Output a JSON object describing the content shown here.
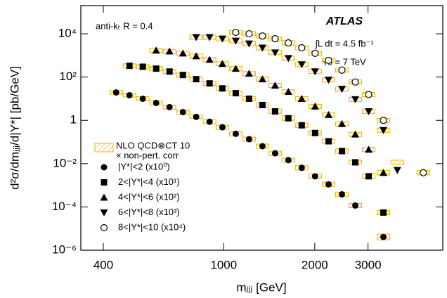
{
  "chart_data": {
    "type": "scatter",
    "xlog": true,
    "ylog": true,
    "x_label": "mⱼⱼⱼ [GeV]",
    "y_label": "d²σ/dmⱼⱼⱼ/d|Y*| [pb/GeV]",
    "annotations": [
      "anti-kₜ R = 0.4",
      "ATLAS",
      "∫L dt = 4.5 fb⁻¹",
      "√s = 7 TeV"
    ],
    "band_label": [
      "NLO QCD⊗CT 10",
      "× non-pert. corr"
    ],
    "band_color": "#f0b400",
    "xlim": [
      337,
      5300
    ],
    "ylim": [
      1e-06,
      200000
    ],
    "xticks": [
      400,
      1000,
      2000,
      3000
    ],
    "yticks": [
      {
        "value": 10000,
        "label": "10⁴"
      },
      {
        "value": 100,
        "label": "10²"
      },
      1,
      {
        "value": 0.01,
        "label": "10⁻²"
      },
      {
        "value": 0.0001,
        "label": "10⁻⁴"
      },
      {
        "value": 1e-06,
        "label": "10⁻⁶"
      }
    ],
    "series": [
      {
        "name": "|Y*|<2 (x10⁰)",
        "marker": "circle",
        "color": "#000000",
        "x": [
          441,
          488,
          540,
          598,
          662,
          733,
          811,
          898,
          990,
          1096,
          1213,
          1343,
          1479,
          1636,
          1811,
          2005,
          2222,
          2460,
          2723,
          3373
        ],
        "values": [
          19.5,
          14.5,
          10,
          6.4,
          4.1,
          2.4,
          1.45,
          0.86,
          0.48,
          0.24,
          0.135,
          0.064,
          0.03,
          0.0145,
          0.0064,
          0.0026,
          0.0011,
          0.00038,
          0.000116,
          4.1e-06
        ],
        "theory": [
          [
            16,
            24
          ],
          [
            12,
            18
          ],
          [
            8,
            12.5
          ],
          [
            5.1,
            8
          ],
          [
            3.3,
            5.1
          ],
          [
            1.9,
            3
          ],
          [
            1.2,
            1.8
          ],
          [
            0.69,
            1.08
          ],
          [
            0.38,
            0.6
          ],
          [
            0.19,
            0.3
          ],
          [
            0.108,
            0.17
          ],
          [
            0.051,
            0.08
          ],
          [
            0.024,
            0.038
          ],
          [
            0.0116,
            0.018
          ],
          [
            0.0051,
            0.008
          ],
          [
            0.0021,
            0.0033
          ],
          [
            0.00088,
            0.0014
          ],
          [
            0.0003,
            0.00048
          ],
          [
            9.3e-05,
            0.000145
          ],
          [
            3e-06,
            5.5e-06
          ]
        ]
      },
      {
        "name": "2<|Y*|<4 (x10¹)",
        "marker": "square",
        "color": "#000000",
        "x": [
          488,
          540,
          598,
          662,
          733,
          811,
          898,
          990,
          1096,
          1213,
          1343,
          1479,
          1636,
          1811,
          2005,
          2222,
          2460,
          2723,
          3015,
          3373
        ],
        "values": [
          330,
          300,
          245,
          180,
          125,
          80,
          51,
          30,
          18,
          10,
          5.1,
          2.6,
          1.25,
          0.59,
          0.26,
          0.108,
          0.038,
          0.0115,
          0.0026,
          5.5e-05
        ],
        "theory": [
          [
            265,
            410
          ],
          [
            240,
            375
          ],
          [
            195,
            305
          ],
          [
            145,
            225
          ],
          [
            100,
            155
          ],
          [
            64,
            100
          ],
          [
            41,
            64
          ],
          [
            24,
            38
          ],
          [
            14,
            22
          ],
          [
            8,
            12.5
          ],
          [
            4.1,
            6.4
          ],
          [
            2.1,
            3.3
          ],
          [
            1,
            1.6
          ],
          [
            0.47,
            0.74
          ],
          [
            0.21,
            0.33
          ],
          [
            0.086,
            0.135
          ],
          [
            0.03,
            0.048
          ],
          [
            0.0092,
            0.0144
          ],
          [
            0.0021,
            0.0033
          ],
          [
            4.4e-05,
            6.9e-05
          ]
        ]
      },
      {
        "name": "4<|Y*|<6  (x10²)",
        "marker": "triangle-up",
        "color": "#000000",
        "x": [
          598,
          662,
          733,
          811,
          898,
          990,
          1096,
          1213,
          1343,
          1479,
          1636,
          1811,
          2005,
          2222,
          2460,
          2723,
          3015,
          3373
        ],
        "values": [
          1700,
          1550,
          1250,
          930,
          640,
          410,
          245,
          145,
          80,
          41,
          21,
          10,
          4.4,
          1.8,
          0.69,
          0.226,
          0.045,
          0.0038
        ],
        "theory": [
          [
            1360,
            2100
          ],
          [
            1240,
            1900
          ],
          [
            1000,
            1550
          ],
          [
            740,
            1160
          ],
          [
            510,
            800
          ],
          [
            330,
            510
          ],
          [
            196,
            305
          ],
          [
            116,
            180
          ],
          [
            64,
            100
          ],
          [
            33,
            51
          ],
          [
            17,
            26
          ],
          [
            8,
            12.5
          ],
          [
            3.5,
            5.5
          ],
          [
            1.45,
            2.25
          ],
          [
            0.55,
            0.86
          ],
          [
            0.18,
            0.28
          ],
          [
            0.036,
            0.056
          ],
          [
            0.003,
            0.0048
          ]
        ]
      },
      {
        "name": "6<|Y*|<8  (x10³)",
        "marker": "triangle-down",
        "color": "#000000",
        "x": [
          811,
          898,
          990,
          1096,
          1213,
          1343,
          1479,
          1636,
          1811,
          2005,
          2222,
          2460,
          2723,
          3015,
          3373,
          3750
        ],
        "values": [
          6900,
          6900,
          5900,
          4700,
          3500,
          2250,
          1350,
          740,
          380,
          180,
          74,
          28,
          9.3,
          2.6,
          0.35,
          0.005
        ],
        "theory": [
          [
            5500,
            8600
          ],
          [
            5500,
            8600
          ],
          [
            4700,
            7400
          ],
          [
            3800,
            5900
          ],
          [
            2800,
            4400
          ],
          [
            1800,
            2800
          ],
          [
            1080,
            1700
          ],
          [
            590,
            930
          ],
          [
            300,
            475
          ],
          [
            144,
            225
          ],
          [
            59,
            93
          ],
          [
            22,
            35
          ],
          [
            7.4,
            11.6
          ],
          [
            2.1,
            3.3
          ],
          [
            0.28,
            0.44
          ],
          [
            0.0092,
            0.0144
          ]
        ]
      },
      {
        "name": "8<|Y*|<10 (x10⁴)",
        "marker": "circle-open",
        "color": "#000000",
        "x": [
          1096,
          1213,
          1343,
          1479,
          1636,
          1811,
          2005,
          2222,
          2460,
          2723,
          3015,
          3373,
          4570
        ],
        "values": [
          11600,
          10000,
          7900,
          5900,
          3800,
          2250,
          1250,
          590,
          210,
          59,
          15.6,
          1,
          0.0038
        ],
        "theory": [
          [
            9300,
            14500
          ],
          [
            8000,
            12500
          ],
          [
            6300,
            9900
          ],
          [
            4700,
            7400
          ],
          [
            3000,
            4800
          ],
          [
            1800,
            2800
          ],
          [
            1000,
            1560
          ],
          [
            470,
            740
          ],
          [
            168,
            260
          ],
          [
            47,
            74
          ],
          [
            12.5,
            19.5
          ],
          [
            0.8,
            1.25
          ],
          [
            0.003,
            0.0048
          ]
        ]
      }
    ]
  }
}
